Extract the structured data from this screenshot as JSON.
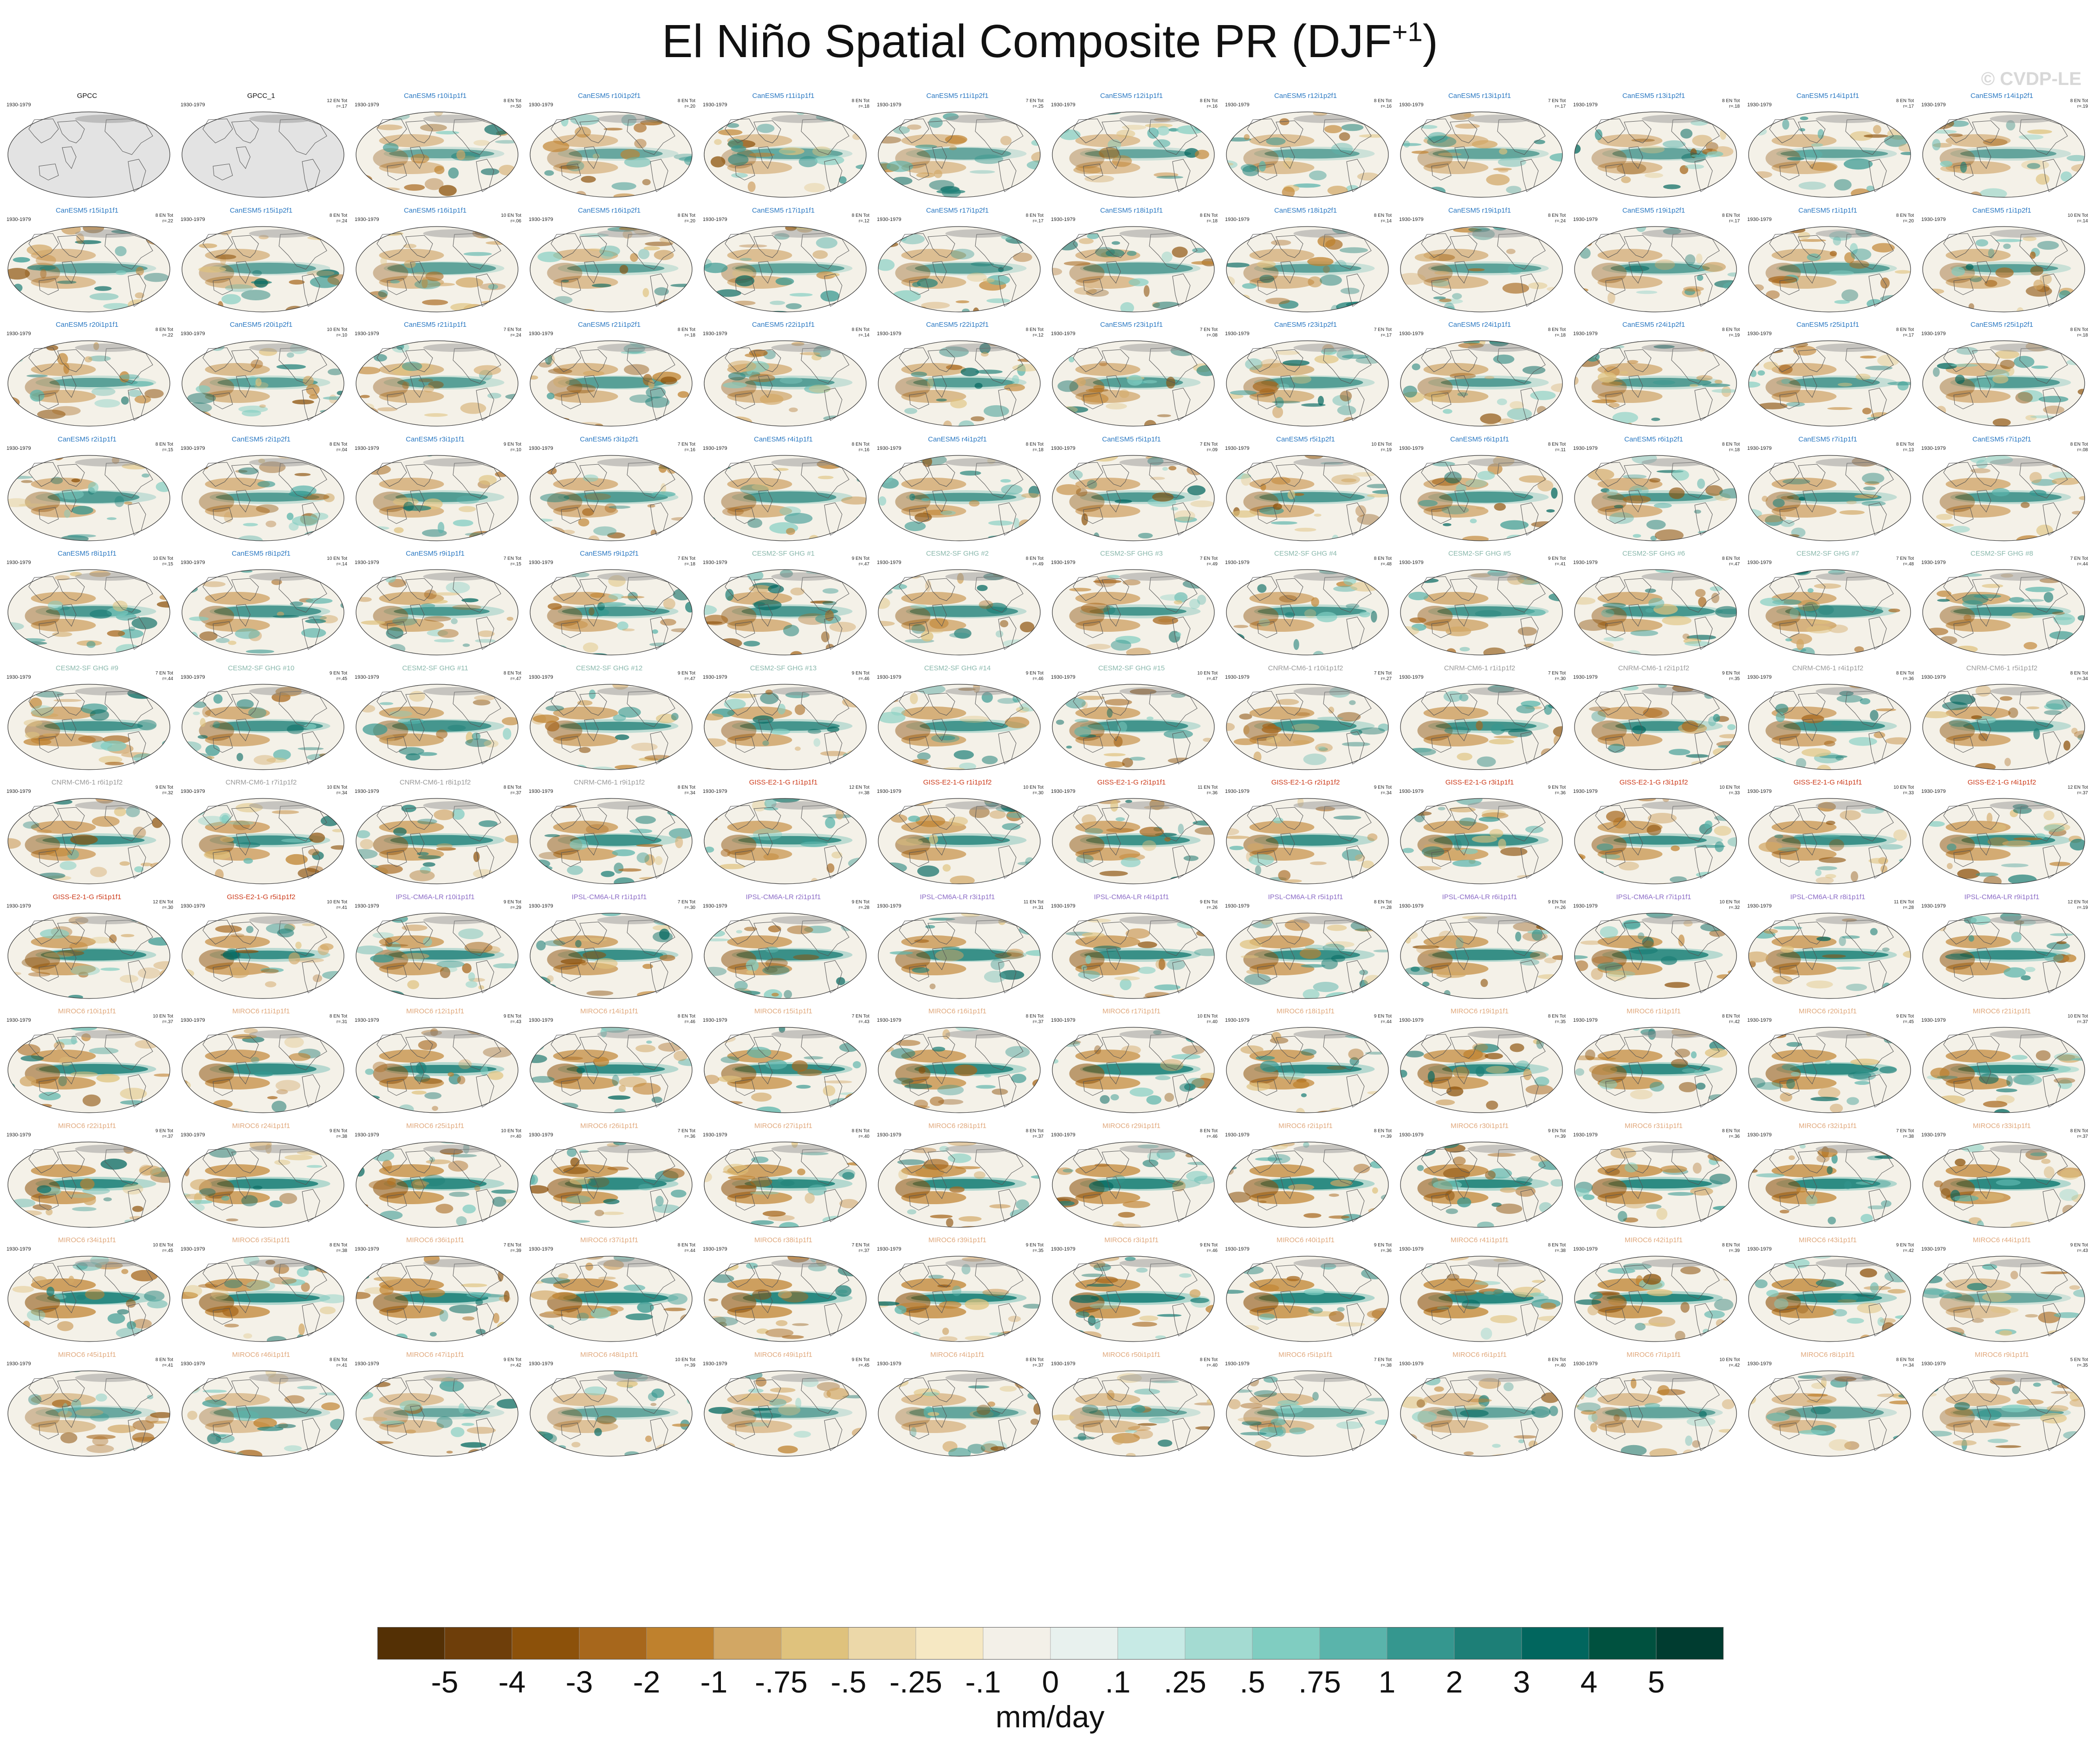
{
  "page": {
    "title_main": "El Niño Spatial Composite PR (DJF",
    "title_sup": "+1",
    "title_close": ")",
    "watermark": "© CVDP-LE"
  },
  "chart_data": {
    "type": "map_panels",
    "title": "El Niño Spatial Composite PR (DJF+1)",
    "period": "1930-1979",
    "units": "mm/day",
    "colorbar": {
      "tick_labels": [
        "-5",
        "-4",
        "-3",
        "-2",
        "-1",
        "-.75",
        "-.5",
        "-.25",
        "-.1",
        "0",
        ".1",
        ".25",
        ".5",
        ".75",
        "1",
        "2",
        "3",
        "4",
        "5"
      ],
      "colors": [
        "#543005",
        "#6e3e0a",
        "#8c510a",
        "#a7671c",
        "#bf812d",
        "#d2a764",
        "#dfc27d",
        "#ecd8a9",
        "#f6e8c3",
        "#f3f0e8",
        "#e8f1ee",
        "#c7eae5",
        "#a4dbd2",
        "#80cdc1",
        "#5ab4ab",
        "#35978f",
        "#1d7f77",
        "#01665e",
        "#00513f",
        "#003c30"
      ]
    },
    "panel_colors": {
      "observations": "#111111",
      "CanESM5": "#2a78c2",
      "CESM2-SF GHG": "#8ab8ac",
      "CNRM-CM6-1": "#9a9a9a",
      "GISS-E2-1-G": "#cc3a1a",
      "IPSL-CM6A-LR": "#8c6cc6",
      "MIROC6": "#e0a87c"
    },
    "panels": [
      {
        "name": "GPCC",
        "group": "observations",
        "stat": "",
        "empty": true
      },
      {
        "name": "GPCC_1",
        "group": "observations",
        "stat": "12 EN Tot\nr=.17",
        "empty": true
      },
      {
        "name": "CanESM5 r10i1p1f1",
        "group": "CanESM5",
        "stat": "8 EN Tot\nr=.50"
      },
      {
        "name": "CanESM5 r10i1p2f1",
        "group": "CanESM5",
        "stat": "8 EN Tot\nr=.20"
      },
      {
        "name": "CanESM5 r11i1p1f1",
        "group": "CanESM5",
        "stat": "8 EN Tot\nr=.18"
      },
      {
        "name": "CanESM5 r11i1p2f1",
        "group": "CanESM5",
        "stat": "7 EN Tot\nr=.25"
      },
      {
        "name": "CanESM5 r12i1p1f1",
        "group": "CanESM5",
        "stat": "8 EN Tot\nr=.16"
      },
      {
        "name": "CanESM5 r12i1p2f1",
        "group": "CanESM5",
        "stat": "8 EN Tot\nr=.16"
      },
      {
        "name": "CanESM5 r13i1p1f1",
        "group": "CanESM5",
        "stat": "7 EN Tot\nr=.17"
      },
      {
        "name": "CanESM5 r13i1p2f1",
        "group": "CanESM5",
        "stat": "8 EN Tot\nr=.18"
      },
      {
        "name": "CanESM5 r14i1p1f1",
        "group": "CanESM5",
        "stat": "8 EN Tot\nr=.17"
      },
      {
        "name": "CanESM5 r14i1p2f1",
        "group": "CanESM5",
        "stat": "8 EN Tot\nr=.19"
      },
      {
        "name": "CanESM5 r15i1p1f1",
        "group": "CanESM5",
        "stat": "8 EN Tot\nr=.22"
      },
      {
        "name": "CanESM5 r15i1p2f1",
        "group": "CanESM5",
        "stat": "8 EN Tot\nr=.24"
      },
      {
        "name": "CanESM5 r16i1p1f1",
        "group": "CanESM5",
        "stat": "10 EN Tot\nr=.06"
      },
      {
        "name": "CanESM5 r16i1p2f1",
        "group": "CanESM5",
        "stat": "8 EN Tot\nr=.20"
      },
      {
        "name": "CanESM5 r17i1p1f1",
        "group": "CanESM5",
        "stat": "8 EN Tot\nr=.12"
      },
      {
        "name": "CanESM5 r17i1p2f1",
        "group": "CanESM5",
        "stat": "8 EN Tot\nr=.17"
      },
      {
        "name": "CanESM5 r18i1p1f1",
        "group": "CanESM5",
        "stat": "8 EN Tot\nr=.18"
      },
      {
        "name": "CanESM5 r18i1p2f1",
        "group": "CanESM5",
        "stat": "8 EN Tot\nr=.14"
      },
      {
        "name": "CanESM5 r19i1p1f1",
        "group": "CanESM5",
        "stat": "8 EN Tot\nr=.24"
      },
      {
        "name": "CanESM5 r19i1p2f1",
        "group": "CanESM5",
        "stat": "8 EN Tot\nr=.17"
      },
      {
        "name": "CanESM5 r1i1p1f1",
        "group": "CanESM5",
        "stat": "8 EN Tot\nr=.20"
      },
      {
        "name": "CanESM5 r1i1p2f1",
        "group": "CanESM5",
        "stat": "10 EN Tot\nr=.14"
      },
      {
        "name": "CanESM5 r20i1p1f1",
        "group": "CanESM5",
        "stat": "8 EN Tot\nr=.22"
      },
      {
        "name": "CanESM5 r20i1p2f1",
        "group": "CanESM5",
        "stat": "10 EN Tot\nr=.10"
      },
      {
        "name": "CanESM5 r21i1p1f1",
        "group": "CanESM5",
        "stat": "7 EN Tot\nr=.24"
      },
      {
        "name": "CanESM5 r21i1p2f1",
        "group": "CanESM5",
        "stat": "8 EN Tot\nr=.18"
      },
      {
        "name": "CanESM5 r22i1p1f1",
        "group": "CanESM5",
        "stat": "8 EN Tot\nr=.14"
      },
      {
        "name": "CanESM5 r22i1p2f1",
        "group": "CanESM5",
        "stat": "8 EN Tot\nr=.12"
      },
      {
        "name": "CanESM5 r23i1p1f1",
        "group": "CanESM5",
        "stat": "7 EN Tot\nr=.08"
      },
      {
        "name": "CanESM5 r23i1p2f1",
        "group": "CanESM5",
        "stat": "7 EN Tot\nr=.17"
      },
      {
        "name": "CanESM5 r24i1p1f1",
        "group": "CanESM5",
        "stat": "8 EN Tot\nr=.18"
      },
      {
        "name": "CanESM5 r24i1p2f1",
        "group": "CanESM5",
        "stat": "8 EN Tot\nr=.19"
      },
      {
        "name": "CanESM5 r25i1p1f1",
        "group": "CanESM5",
        "stat": "8 EN Tot\nr=.17"
      },
      {
        "name": "CanESM5 r25i1p2f1",
        "group": "CanESM5",
        "stat": "8 EN Tot\nr=.18"
      },
      {
        "name": "CanESM5 r2i1p1f1",
        "group": "CanESM5",
        "stat": "8 EN Tot\nr=.15"
      },
      {
        "name": "CanESM5 r2i1p2f1",
        "group": "CanESM5",
        "stat": "8 EN Tot\nr=.04"
      },
      {
        "name": "CanESM5 r3i1p1f1",
        "group": "CanESM5",
        "stat": "9 EN Tot\nr=.10"
      },
      {
        "name": "CanESM5 r3i1p2f1",
        "group": "CanESM5",
        "stat": "7 EN Tot\nr=.16"
      },
      {
        "name": "CanESM5 r4i1p1f1",
        "group": "CanESM5",
        "stat": "8 EN Tot\nr=.16"
      },
      {
        "name": "CanESM5 r4i1p2f1",
        "group": "CanESM5",
        "stat": "8 EN Tot\nr=.18"
      },
      {
        "name": "CanESM5 r5i1p1f1",
        "group": "CanESM5",
        "stat": "7 EN Tot\nr=.09"
      },
      {
        "name": "CanESM5 r5i1p2f1",
        "group": "CanESM5",
        "stat": "10 EN Tot\nr=.19"
      },
      {
        "name": "CanESM5 r6i1p1f1",
        "group": "CanESM5",
        "stat": "8 EN Tot\nr=.11"
      },
      {
        "name": "CanESM5 r6i1p2f1",
        "group": "CanESM5",
        "stat": "8 EN Tot\nr=.18"
      },
      {
        "name": "CanESM5 r7i1p1f1",
        "group": "CanESM5",
        "stat": "8 EN Tot\nr=.13"
      },
      {
        "name": "CanESM5 r7i1p2f1",
        "group": "CanESM5",
        "stat": "8 EN Tot\nr=.08"
      },
      {
        "name": "CanESM5 r8i1p1f1",
        "group": "CanESM5",
        "stat": "10 EN Tot\nr=.15"
      },
      {
        "name": "CanESM5 r8i1p2f1",
        "group": "CanESM5",
        "stat": "10 EN Tot\nr=.14"
      },
      {
        "name": "CanESM5 r9i1p1f1",
        "group": "CanESM5",
        "stat": "7 EN Tot\nr=.15"
      },
      {
        "name": "CanESM5 r9i1p2f1",
        "group": "CanESM5",
        "stat": "7 EN Tot\nr=.18"
      },
      {
        "name": "CESM2-SF GHG #1",
        "group": "CESM2-SF GHG",
        "stat": "9 EN Tot\nr=.47"
      },
      {
        "name": "CESM2-SF GHG #2",
        "group": "CESM2-SF GHG",
        "stat": "8 EN Tot\nr=.49"
      },
      {
        "name": "CESM2-SF GHG #3",
        "group": "CESM2-SF GHG",
        "stat": "7 EN Tot\nr=.49"
      },
      {
        "name": "CESM2-SF GHG #4",
        "group": "CESM2-SF GHG",
        "stat": "8 EN Tot\nr=.48"
      },
      {
        "name": "CESM2-SF GHG #5",
        "group": "CESM2-SF GHG",
        "stat": "9 EN Tot\nr=.41"
      },
      {
        "name": "CESM2-SF GHG #6",
        "group": "CESM2-SF GHG",
        "stat": "8 EN Tot\nr=.47"
      },
      {
        "name": "CESM2-SF GHG #7",
        "group": "CESM2-SF GHG",
        "stat": "7 EN Tot\nr=.48"
      },
      {
        "name": "CESM2-SF GHG #8",
        "group": "CESM2-SF GHG",
        "stat": "7 EN Tot\nr=.44"
      },
      {
        "name": "CESM2-SF GHG #9",
        "group": "CESM2-SF GHG",
        "stat": "7 EN Tot\nr=.44"
      },
      {
        "name": "CESM2-SF GHG #10",
        "group": "CESM2-SF GHG",
        "stat": "9 EN Tot\nr=.45"
      },
      {
        "name": "CESM2-SF GHG #11",
        "group": "CESM2-SF GHG",
        "stat": "8 EN Tot\nr=.47"
      },
      {
        "name": "CESM2-SF GHG #12",
        "group": "CESM2-SF GHG",
        "stat": "9 EN Tot\nr=.47"
      },
      {
        "name": "CESM2-SF GHG #13",
        "group": "CESM2-SF GHG",
        "stat": "9 EN Tot\nr=.46"
      },
      {
        "name": "CESM2-SF GHG #14",
        "group": "CESM2-SF GHG",
        "stat": "9 EN Tot\nr=.46"
      },
      {
        "name": "CESM2-SF GHG #15",
        "group": "CESM2-SF GHG",
        "stat": "10 EN Tot\nr=.47"
      },
      {
        "name": "CNRM-CM6-1 r10i1p1f2",
        "group": "CNRM-CM6-1",
        "stat": "7 EN Tot\nr=.27"
      },
      {
        "name": "CNRM-CM6-1 r1i1p1f2",
        "group": "CNRM-CM6-1",
        "stat": "7 EN Tot\nr=.30"
      },
      {
        "name": "CNRM-CM6-1 r2i1p1f2",
        "group": "CNRM-CM6-1",
        "stat": "9 EN Tot\nr=.35"
      },
      {
        "name": "CNRM-CM6-1 r4i1p1f2",
        "group": "CNRM-CM6-1",
        "stat": "8 EN Tot\nr=.36"
      },
      {
        "name": "CNRM-CM6-1 r5i1p1f2",
        "group": "CNRM-CM6-1",
        "stat": "8 EN Tot\nr=.34"
      },
      {
        "name": "CNRM-CM6-1 r6i1p1f2",
        "group": "CNRM-CM6-1",
        "stat": "9 EN Tot\nr=.32"
      },
      {
        "name": "CNRM-CM6-1 r7i1p1f2",
        "group": "CNRM-CM6-1",
        "stat": "10 EN Tot\nr=.34"
      },
      {
        "name": "CNRM-CM6-1 r8i1p1f2",
        "group": "CNRM-CM6-1",
        "stat": "8 EN Tot\nr=.37"
      },
      {
        "name": "CNRM-CM6-1 r9i1p1f2",
        "group": "CNRM-CM6-1",
        "stat": "8 EN Tot\nr=.34"
      },
      {
        "name": "GISS-E2-1-G r1i1p1f1",
        "group": "GISS-E2-1-G",
        "stat": "12 EN Tot\nr=.38"
      },
      {
        "name": "GISS-E2-1-G r1i1p1f2",
        "group": "GISS-E2-1-G",
        "stat": "10 EN Tot\nr=.30"
      },
      {
        "name": "GISS-E2-1-G r2i1p1f1",
        "group": "GISS-E2-1-G",
        "stat": "11 EN Tot\nr=.36"
      },
      {
        "name": "GISS-E2-1-G r2i1p1f2",
        "group": "GISS-E2-1-G",
        "stat": "9 EN Tot\nr=.34"
      },
      {
        "name": "GISS-E2-1-G r3i1p1f1",
        "group": "GISS-E2-1-G",
        "stat": "9 EN Tot\nr=.36"
      },
      {
        "name": "GISS-E2-1-G r3i1p1f2",
        "group": "GISS-E2-1-G",
        "stat": "10 EN Tot\nr=.33"
      },
      {
        "name": "GISS-E2-1-G r4i1p1f1",
        "group": "GISS-E2-1-G",
        "stat": "10 EN Tot\nr=.33"
      },
      {
        "name": "GISS-E2-1-G r4i1p1f2",
        "group": "GISS-E2-1-G",
        "stat": "12 EN Tot\nr=.37"
      },
      {
        "name": "GISS-E2-1-G r5i1p1f1",
        "group": "GISS-E2-1-G",
        "stat": "12 EN Tot\nr=.30"
      },
      {
        "name": "GISS-E2-1-G r5i1p1f2",
        "group": "GISS-E2-1-G",
        "stat": "10 EN Tot\nr=.41"
      },
      {
        "name": "IPSL-CM6A-LR r10i1p1f1",
        "group": "IPSL-CM6A-LR",
        "stat": "9 EN Tot\nr=.29"
      },
      {
        "name": "IPSL-CM6A-LR r1i1p1f1",
        "group": "IPSL-CM6A-LR",
        "stat": "7 EN Tot\nr=.30"
      },
      {
        "name": "IPSL-CM6A-LR r2i1p1f1",
        "group": "IPSL-CM6A-LR",
        "stat": "9 EN Tot\nr=.28"
      },
      {
        "name": "IPSL-CM6A-LR r3i1p1f1",
        "group": "IPSL-CM6A-LR",
        "stat": "11 EN Tot\nr=.31"
      },
      {
        "name": "IPSL-CM6A-LR r4i1p1f1",
        "group": "IPSL-CM6A-LR",
        "stat": "9 EN Tot\nr=.26"
      },
      {
        "name": "IPSL-CM6A-LR r5i1p1f1",
        "group": "IPSL-CM6A-LR",
        "stat": "8 EN Tot\nr=.28"
      },
      {
        "name": "IPSL-CM6A-LR r6i1p1f1",
        "group": "IPSL-CM6A-LR",
        "stat": "9 EN Tot\nr=.26"
      },
      {
        "name": "IPSL-CM6A-LR r7i1p1f1",
        "group": "IPSL-CM6A-LR",
        "stat": "10 EN Tot\nr=.32"
      },
      {
        "name": "IPSL-CM6A-LR r8i1p1f1",
        "group": "IPSL-CM6A-LR",
        "stat": "11 EN Tot\nr=.28"
      },
      {
        "name": "IPSL-CM6A-LR r9i1p1f1",
        "group": "IPSL-CM6A-LR",
        "stat": "12 EN Tot\nr=.19"
      },
      {
        "name": "MIROC6 r10i1p1f1",
        "group": "MIROC6",
        "stat": "10 EN Tot\nr=.37"
      },
      {
        "name": "MIROC6 r11i1p1f1",
        "group": "MIROC6",
        "stat": "8 EN Tot\nr=.31"
      },
      {
        "name": "MIROC6 r12i1p1f1",
        "group": "MIROC6",
        "stat": "9 EN Tot\nr=.43"
      },
      {
        "name": "MIROC6 r14i1p1f1",
        "group": "MIROC6",
        "stat": "8 EN Tot\nr=.46"
      },
      {
        "name": "MIROC6 r15i1p1f1",
        "group": "MIROC6",
        "stat": "7 EN Tot\nr=.43"
      },
      {
        "name": "MIROC6 r16i1p1f1",
        "group": "MIROC6",
        "stat": "8 EN Tot\nr=.37"
      },
      {
        "name": "MIROC6 r17i1p1f1",
        "group": "MIROC6",
        "stat": "10 EN Tot\nr=.40"
      },
      {
        "name": "MIROC6 r18i1p1f1",
        "group": "MIROC6",
        "stat": "9 EN Tot\nr=.44"
      },
      {
        "name": "MIROC6 r19i1p1f1",
        "group": "MIROC6",
        "stat": "8 EN Tot\nr=.35"
      },
      {
        "name": "MIROC6 r1i1p1f1",
        "group": "MIROC6",
        "stat": "8 EN Tot\nr=.42"
      },
      {
        "name": "MIROC6 r20i1p1f1",
        "group": "MIROC6",
        "stat": "9 EN Tot\nr=.45"
      },
      {
        "name": "MIROC6 r21i1p1f1",
        "group": "MIROC6",
        "stat": "10 EN Tot\nr=.37"
      },
      {
        "name": "MIROC6 r22i1p1f1",
        "group": "MIROC6",
        "stat": "9 EN Tot\nr=.37"
      },
      {
        "name": "MIROC6 r24i1p1f1",
        "group": "MIROC6",
        "stat": "9 EN Tot\nr=.38"
      },
      {
        "name": "MIROC6 r25i1p1f1",
        "group": "MIROC6",
        "stat": "10 EN Tot\nr=.40"
      },
      {
        "name": "MIROC6 r26i1p1f1",
        "group": "MIROC6",
        "stat": "7 EN Tot\nr=.36"
      },
      {
        "name": "MIROC6 r27i1p1f1",
        "group": "MIROC6",
        "stat": "8 EN Tot\nr=.40"
      },
      {
        "name": "MIROC6 r28i1p1f1",
        "group": "MIROC6",
        "stat": "8 EN Tot\nr=.37"
      },
      {
        "name": "MIROC6 r29i1p1f1",
        "group": "MIROC6",
        "stat": "8 EN Tot\nr=.46"
      },
      {
        "name": "MIROC6 r2i1p1f1",
        "group": "MIROC6",
        "stat": "8 EN Tot\nr=.39"
      },
      {
        "name": "MIROC6 r30i1p1f1",
        "group": "MIROC6",
        "stat": "9 EN Tot\nr=.39"
      },
      {
        "name": "MIROC6 r31i1p1f1",
        "group": "MIROC6",
        "stat": "8 EN Tot\nr=.36"
      },
      {
        "name": "MIROC6 r32i1p1f1",
        "group": "MIROC6",
        "stat": "7 EN Tot\nr=.38"
      },
      {
        "name": "MIROC6 r33i1p1f1",
        "group": "MIROC6",
        "stat": "8 EN Tot\nr=.37"
      },
      {
        "name": "MIROC6 r34i1p1f1",
        "group": "MIROC6",
        "stat": "10 EN Tot\nr=.45"
      },
      {
        "name": "MIROC6 r35i1p1f1",
        "group": "MIROC6",
        "stat": "8 EN Tot\nr=.38"
      },
      {
        "name": "MIROC6 r36i1p1f1",
        "group": "MIROC6",
        "stat": "7 EN Tot\nr=.39"
      },
      {
        "name": "MIROC6 r37i1p1f1",
        "group": "MIROC6",
        "stat": "8 EN Tot\nr=.44"
      },
      {
        "name": "MIROC6 r38i1p1f1",
        "group": "MIROC6",
        "stat": "7 EN Tot\nr=.37"
      },
      {
        "name": "MIROC6 r39i1p1f1",
        "group": "MIROC6",
        "stat": "9 EN Tot\nr=.35"
      },
      {
        "name": "MIROC6 r3i1p1f1",
        "group": "MIROC6",
        "stat": "9 EN Tot\nr=.46"
      },
      {
        "name": "MIROC6 r40i1p1f1",
        "group": "MIROC6",
        "stat": "9 EN Tot\nr=.36"
      },
      {
        "name": "MIROC6 r41i1p1f1",
        "group": "MIROC6",
        "stat": "8 EN Tot\nr=.38"
      },
      {
        "name": "MIROC6 r42i1p1f1",
        "group": "MIROC6",
        "stat": "8 EN Tot\nr=.39"
      },
      {
        "name": "MIROC6 r43i1p1f1",
        "group": "MIROC6",
        "stat": "9 EN Tot\nr=.42"
      },
      {
        "name": "MIROC6 r44i1p1f1",
        "group": "MIROC6",
        "stat": "9 EN Tot\nr=.43"
      },
      {
        "name": "MIROC6 r45i1p1f1",
        "group": "MIROC6",
        "stat": "8 EN Tot\nr=.41"
      },
      {
        "name": "MIROC6 r46i1p1f1",
        "group": "MIROC6",
        "stat": "8 EN Tot\nr=.41"
      },
      {
        "name": "MIROC6 r47i1p1f1",
        "group": "MIROC6",
        "stat": "9 EN Tot\nr=.42"
      },
      {
        "name": "MIROC6 r48i1p1f1",
        "group": "MIROC6",
        "stat": "10 EN Tot\nr=.39"
      },
      {
        "name": "MIROC6 r49i1p1f1",
        "group": "MIROC6",
        "stat": "9 EN Tot\nr=.45"
      },
      {
        "name": "MIROC6 r4i1p1f1",
        "group": "MIROC6",
        "stat": "8 EN Tot\nr=.37"
      },
      {
        "name": "MIROC6 r50i1p1f1",
        "group": "MIROC6",
        "stat": "8 EN Tot\nr=.40"
      },
      {
        "name": "MIROC6 r5i1p1f1",
        "group": "MIROC6",
        "stat": "7 EN Tot\nr=.38"
      },
      {
        "name": "MIROC6 r6i1p1f1",
        "group": "MIROC6",
        "stat": "8 EN Tot\nr=.40"
      },
      {
        "name": "MIROC6 r7i1p1f1",
        "group": "MIROC6",
        "stat": "10 EN Tot\nr=.42"
      },
      {
        "name": "MIROC6 r8i1p1f1",
        "group": "MIROC6",
        "stat": "8 EN Tot\nr=.34"
      },
      {
        "name": "MIROC6 r9i1p1f1",
        "group": "MIROC6",
        "stat": "5 EN Tot\nr=.35"
      }
    ]
  }
}
